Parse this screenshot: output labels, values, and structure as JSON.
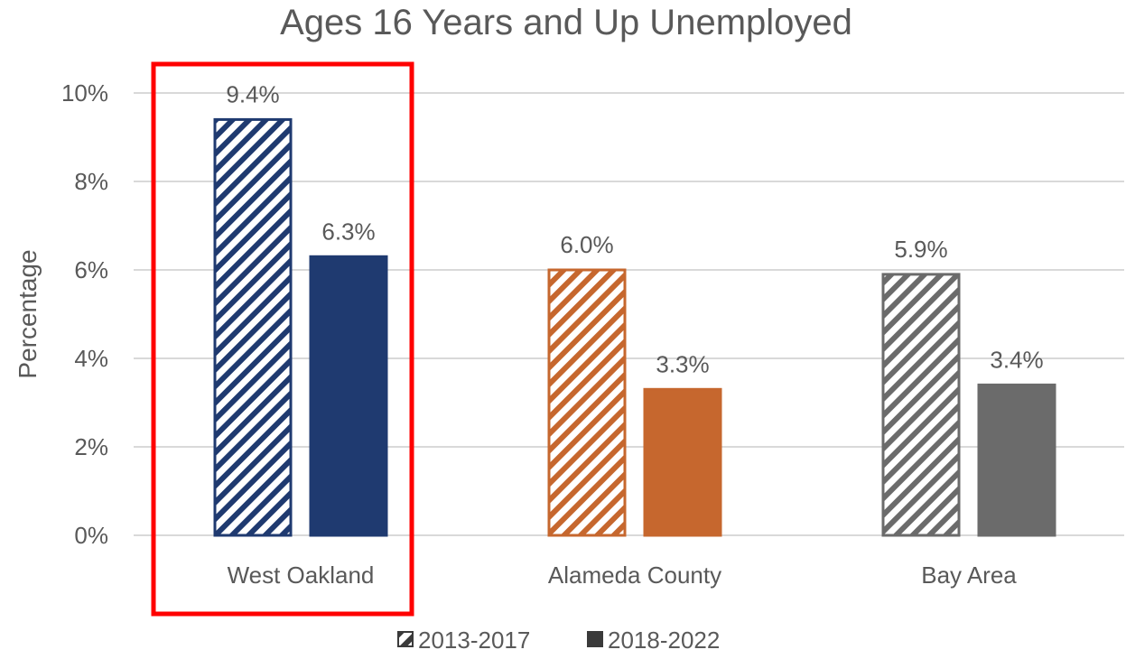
{
  "chart_data": {
    "type": "bar",
    "title": "Ages 16 Years and Up Unemployed",
    "xlabel": "",
    "ylabel": "Percentage",
    "ylim": [
      0,
      10
    ],
    "yticks": [
      "0%",
      "2%",
      "4%",
      "6%",
      "8%",
      "10%"
    ],
    "grid": true,
    "legend_position": "bottom",
    "categories": [
      "West Oakland",
      "Alameda County",
      "Bay Area"
    ],
    "series": [
      {
        "name": "2013-2017",
        "pattern": "diagonal-hatch",
        "values": [
          9.4,
          6.0,
          5.9
        ],
        "labels": [
          "9.4%",
          "6.0%",
          "5.9%"
        ]
      },
      {
        "name": "2018-2022",
        "pattern": "solid",
        "values": [
          6.3,
          3.3,
          3.4
        ],
        "labels": [
          "6.3%",
          "3.3%",
          "3.4%"
        ]
      }
    ],
    "category_colors": [
      "#1f3a70",
      "#c6672e",
      "#6b6b6b"
    ],
    "highlight": {
      "category": "West Oakland",
      "color": "#ff0000"
    },
    "legend_swatch_color": "#3a3a3a"
  }
}
